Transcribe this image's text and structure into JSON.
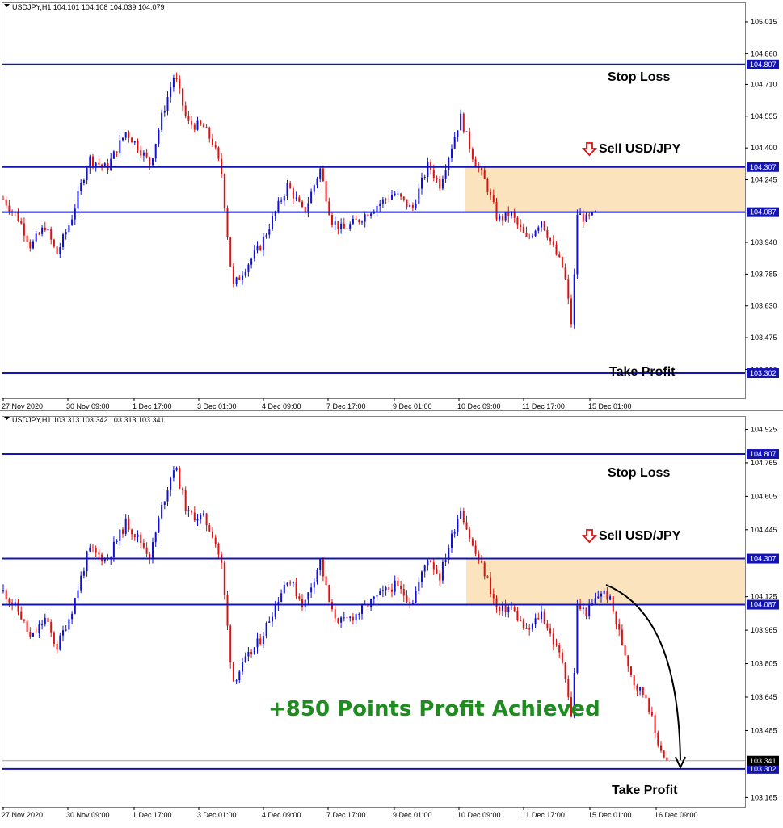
{
  "colors": {
    "bull": "#1010d8",
    "bear": "#e01010",
    "level_line": "#1414b4",
    "zone": "#fbe3bd",
    "profit_text": "#1e8c1e",
    "sell_arrow": "#e01010",
    "price_tag_bg": "#1414b4",
    "current_tag_bg": "#000000"
  },
  "icons": {
    "sell": "down-arrow-icon",
    "menu": "triangle-down-icon"
  },
  "chart_data": [
    {
      "type": "candlestick",
      "header": "USDJPY,H1  104.101 104.108 104.039 104.079",
      "ylim": [
        103.18,
        105.07
      ],
      "y_ticks": [
        "105.015",
        "104.860",
        "104.710",
        "104.555",
        "104.400",
        "104.245",
        "104.087",
        "103.940",
        "103.785",
        "103.630",
        "103.475",
        "103.320"
      ],
      "x_ticks": [
        "27 Nov 2020",
        "30 Nov 09:00",
        "1 Dec 17:00",
        "3 Dec 01:00",
        "4 Dec 09:00",
        "7 Dec 17:00",
        "9 Dec 01:00",
        "10 Dec 09:00",
        "11 Dec 17:00",
        "15 Dec 01:00"
      ],
      "levels": [
        {
          "label": "Stop Loss",
          "value": 104.807,
          "tag": "104.807"
        },
        {
          "label": "Sell USD/JPY",
          "value": 104.307,
          "tag": "104.307"
        },
        {
          "label": "",
          "value": 104.087,
          "tag": "104.087"
        },
        {
          "label": "Take Profit",
          "value": 103.302,
          "tag": "103.302"
        }
      ],
      "sell_zone": {
        "from": 104.087,
        "to": 104.307
      },
      "path": [
        [
          104.15,
          0
        ],
        [
          104.05,
          20
        ],
        [
          103.92,
          34
        ],
        [
          104.02,
          52
        ],
        [
          103.88,
          66
        ],
        [
          104.05,
          84
        ],
        [
          104.35,
          106
        ],
        [
          104.3,
          128
        ],
        [
          104.48,
          152
        ],
        [
          104.4,
          168
        ],
        [
          104.32,
          182
        ],
        [
          104.55,
          196
        ],
        [
          104.76,
          212
        ],
        [
          104.52,
          228
        ],
        [
          104.5,
          248
        ],
        [
          104.42,
          260
        ],
        [
          104.28,
          270
        ],
        [
          103.72,
          284
        ],
        [
          103.82,
          300
        ],
        [
          103.92,
          318
        ],
        [
          104.08,
          336
        ],
        [
          104.22,
          352
        ],
        [
          104.08,
          372
        ],
        [
          104.3,
          392
        ],
        [
          104.05,
          406
        ],
        [
          104.0,
          420
        ],
        [
          104.05,
          440
        ],
        [
          104.12,
          462
        ],
        [
          104.18,
          484
        ],
        [
          104.1,
          506
        ],
        [
          104.32,
          526
        ],
        [
          104.22,
          540
        ],
        [
          104.55,
          566
        ],
        [
          104.35,
          582
        ],
        [
          104.22,
          598
        ],
        [
          104.05,
          612
        ],
        [
          104.08,
          628
        ],
        [
          103.95,
          648
        ],
        [
          104.05,
          666
        ],
        [
          103.9,
          682
        ],
        [
          103.8,
          694
        ],
        [
          103.52,
          704
        ],
        [
          104.08,
          710
        ],
        [
          104.05,
          722
        ],
        [
          104.08,
          734
        ]
      ]
    },
    {
      "type": "candlestick",
      "header": "USDJPY,H1  103.313 103.342 103.313 103.341",
      "ylim": [
        103.12,
        104.95
      ],
      "y_ticks": [
        "104.925",
        "104.765",
        "104.605",
        "104.445",
        "104.125",
        "103.965",
        "103.805",
        "103.645",
        "103.485",
        "103.165"
      ],
      "x_ticks": [
        "27 Nov 2020",
        "30 Nov 09:00",
        "1 Dec 17:00",
        "3 Dec 01:00",
        "4 Dec 09:00",
        "7 Dec 17:00",
        "9 Dec 01:00",
        "10 Dec 09:00",
        "11 Dec 17:00",
        "15 Dec 01:00",
        "16 Dec 09:00"
      ],
      "current_price": {
        "value": 103.341,
        "tag": "103.341"
      },
      "levels": [
        {
          "label": "Stop Loss",
          "value": 104.807,
          "tag": "104.807"
        },
        {
          "label": "Sell USD/JPY",
          "value": 104.307,
          "tag": "104.307"
        },
        {
          "label": "",
          "value": 104.087,
          "tag": "104.087"
        },
        {
          "label": "Take Profit",
          "value": 103.302,
          "tag": "103.302"
        }
      ],
      "sell_zone": {
        "from": 104.087,
        "to": 104.307
      },
      "annotation": "+850 Points Profit Achieved",
      "path": [
        [
          104.15,
          0
        ],
        [
          104.05,
          20
        ],
        [
          103.92,
          34
        ],
        [
          104.02,
          52
        ],
        [
          103.88,
          66
        ],
        [
          104.05,
          84
        ],
        [
          104.35,
          106
        ],
        [
          104.3,
          128
        ],
        [
          104.48,
          152
        ],
        [
          104.4,
          168
        ],
        [
          104.32,
          182
        ],
        [
          104.55,
          196
        ],
        [
          104.76,
          212
        ],
        [
          104.52,
          228
        ],
        [
          104.5,
          248
        ],
        [
          104.42,
          260
        ],
        [
          104.28,
          270
        ],
        [
          103.72,
          284
        ],
        [
          103.82,
          300
        ],
        [
          103.92,
          318
        ],
        [
          104.08,
          336
        ],
        [
          104.22,
          352
        ],
        [
          104.08,
          372
        ],
        [
          104.3,
          392
        ],
        [
          104.05,
          406
        ],
        [
          104.0,
          420
        ],
        [
          104.05,
          440
        ],
        [
          104.12,
          462
        ],
        [
          104.18,
          484
        ],
        [
          104.1,
          506
        ],
        [
          104.32,
          526
        ],
        [
          104.22,
          540
        ],
        [
          104.55,
          566
        ],
        [
          104.35,
          582
        ],
        [
          104.22,
          598
        ],
        [
          104.05,
          612
        ],
        [
          104.08,
          628
        ],
        [
          103.95,
          648
        ],
        [
          104.05,
          666
        ],
        [
          103.9,
          682
        ],
        [
          103.8,
          694
        ],
        [
          103.52,
          704
        ],
        [
          104.08,
          710
        ],
        [
          104.05,
          722
        ],
        [
          104.15,
          740
        ],
        [
          104.12,
          750
        ],
        [
          103.9,
          766
        ],
        [
          103.7,
          782
        ],
        [
          103.65,
          796
        ],
        [
          103.45,
          808
        ],
        [
          103.33,
          822
        ]
      ]
    }
  ]
}
